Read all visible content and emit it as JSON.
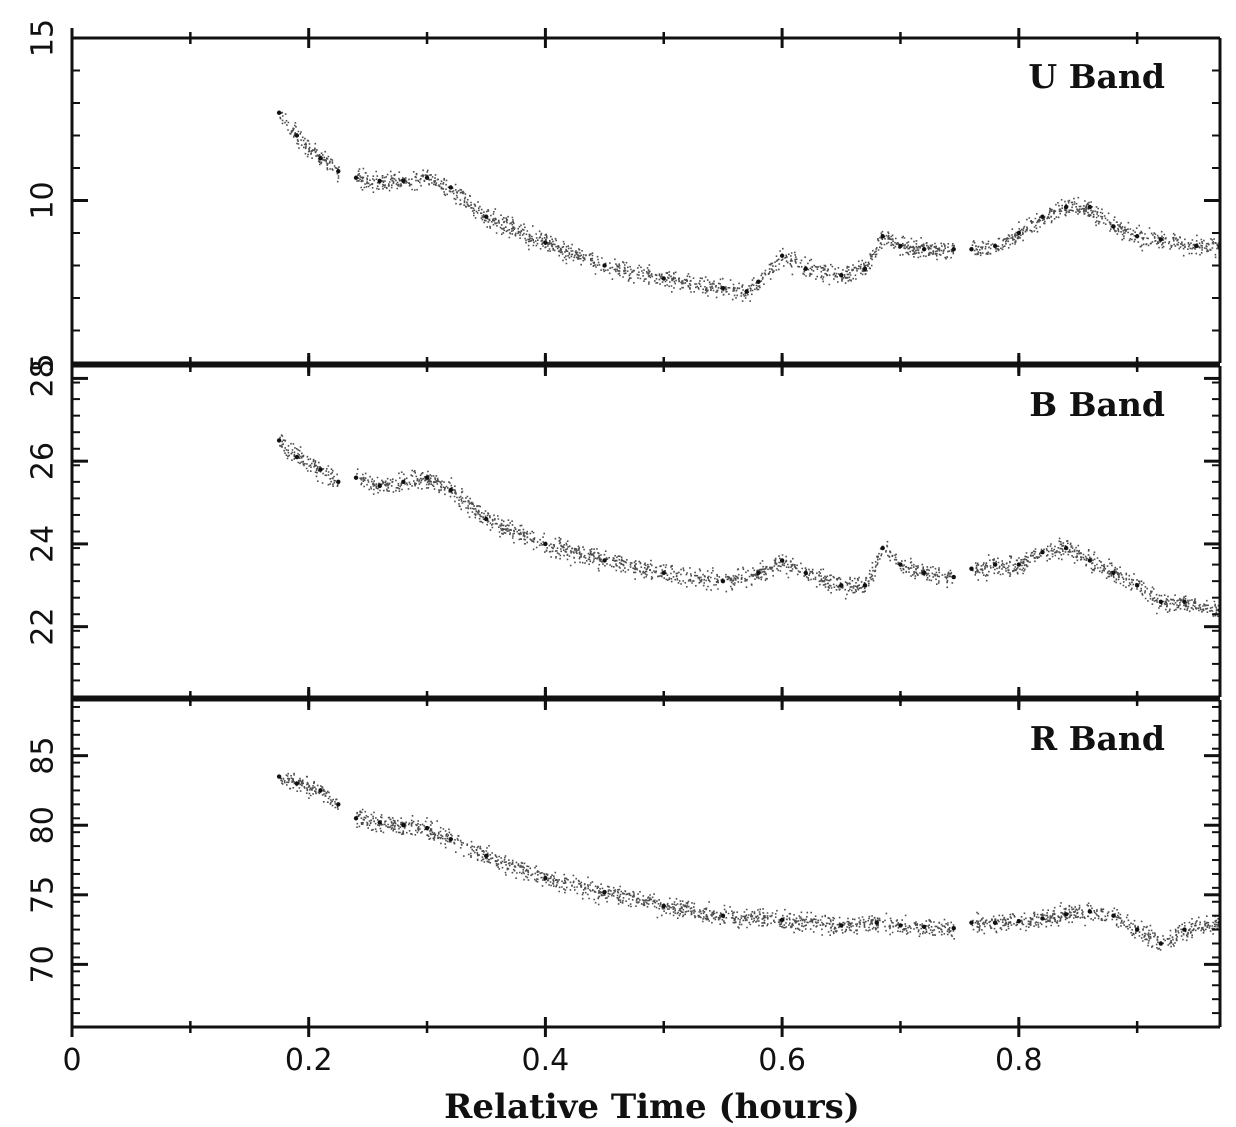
{
  "chart_data": {
    "type": "scatter",
    "xlabel": "Relative Time (hours)",
    "xlim": [
      0,
      0.97
    ],
    "xticks": [
      "0",
      "0.2",
      "0.4",
      "0.6",
      "0.8"
    ],
    "grid": false,
    "shared_x": true,
    "panels": [
      {
        "label": "U Band",
        "ylim": [
          5,
          15
        ],
        "yticks": [
          "5",
          "10",
          "15"
        ],
        "series": [
          {
            "x": [
              0.175,
              0.19,
              0.21,
              0.225
            ],
            "y": [
              12.7,
              12.0,
              11.3,
              10.9
            ]
          },
          {
            "x": [
              0.24,
              0.26,
              0.28,
              0.3,
              0.32,
              0.35,
              0.4,
              0.45,
              0.5,
              0.55,
              0.57,
              0.58,
              0.6,
              0.62,
              0.65,
              0.67,
              0.685,
              0.7,
              0.72,
              0.745
            ],
            "y": [
              10.7,
              10.6,
              10.6,
              10.7,
              10.4,
              9.5,
              8.7,
              8.0,
              7.6,
              7.3,
              7.2,
              7.5,
              8.3,
              7.9,
              7.7,
              7.9,
              8.9,
              8.6,
              8.5,
              8.5
            ]
          },
          {
            "x": [
              0.76,
              0.78,
              0.8,
              0.82,
              0.84,
              0.86,
              0.88,
              0.9,
              0.92,
              0.95,
              0.97
            ],
            "y": [
              8.5,
              8.6,
              9.0,
              9.5,
              9.8,
              9.8,
              9.2,
              8.9,
              8.8,
              8.6,
              8.6
            ]
          }
        ]
      },
      {
        "label": "B Band",
        "ylim": [
          20.3,
          28.3
        ],
        "yticks": [
          "22",
          "24",
          "26",
          "28"
        ],
        "series": [
          {
            "x": [
              0.175,
              0.19,
              0.21,
              0.225
            ],
            "y": [
              26.5,
              26.1,
              25.8,
              25.5
            ]
          },
          {
            "x": [
              0.24,
              0.26,
              0.28,
              0.3,
              0.32,
              0.35,
              0.4,
              0.45,
              0.5,
              0.55,
              0.58,
              0.6,
              0.62,
              0.65,
              0.67,
              0.685,
              0.7,
              0.72,
              0.745
            ],
            "y": [
              25.6,
              25.4,
              25.5,
              25.6,
              25.3,
              24.6,
              24.0,
              23.6,
              23.3,
              23.1,
              23.3,
              23.6,
              23.3,
              23.0,
              23.0,
              23.9,
              23.5,
              23.3,
              23.2
            ]
          },
          {
            "x": [
              0.76,
              0.78,
              0.8,
              0.82,
              0.84,
              0.86,
              0.88,
              0.9,
              0.92,
              0.94,
              0.97
            ],
            "y": [
              23.4,
              23.5,
              23.5,
              23.8,
              23.9,
              23.6,
              23.3,
              23.0,
              22.6,
              22.6,
              22.4
            ]
          }
        ]
      },
      {
        "label": "R Band",
        "ylim": [
          65.5,
          89.0
        ],
        "yticks": [
          "70",
          "75",
          "80",
          "85"
        ],
        "series": [
          {
            "x": [
              0.175,
              0.19,
              0.21,
              0.225
            ],
            "y": [
              83.5,
              83.0,
              82.5,
              81.5
            ]
          },
          {
            "x": [
              0.24,
              0.26,
              0.28,
              0.3,
              0.32,
              0.35,
              0.4,
              0.45,
              0.5,
              0.55,
              0.6,
              0.65,
              0.68,
              0.7,
              0.72,
              0.745
            ],
            "y": [
              80.5,
              80.2,
              80.0,
              79.8,
              79.0,
              77.8,
              76.2,
              75.2,
              74.2,
              73.5,
              73.2,
              72.8,
              73.0,
              72.8,
              72.7,
              72.6
            ]
          },
          {
            "x": [
              0.76,
              0.78,
              0.8,
              0.82,
              0.84,
              0.86,
              0.88,
              0.9,
              0.92,
              0.94,
              0.97
            ],
            "y": [
              73.0,
              73.0,
              73.1,
              73.3,
              73.6,
              73.8,
              73.5,
              72.5,
              71.5,
              72.5,
              73.0
            ]
          }
        ]
      }
    ]
  }
}
